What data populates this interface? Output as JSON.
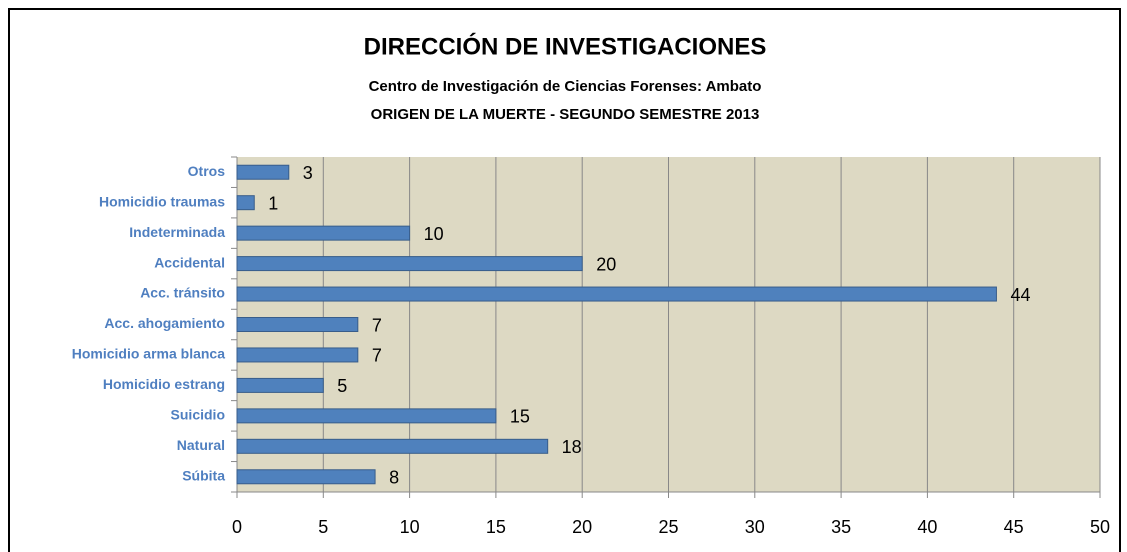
{
  "chart_data": {
    "type": "bar",
    "orientation": "horizontal",
    "title": "DIRECCIÓN DE INVESTIGACIONES",
    "subtitles": [
      "Centro de Investigación de Ciencias Forenses: Ambato",
      "ORIGEN DE LA MUERTE - SEGUNDO SEMESTRE 2013"
    ],
    "categories": [
      "Otros",
      "Homicidio traumas",
      "Indeterminada",
      "Accidental",
      "Acc. tránsito",
      "Acc. ahogamiento",
      "Homicidio arma blanca",
      "Homicidio estrang",
      "Suicidio",
      "Natural",
      "Súbita"
    ],
    "values": [
      3,
      1,
      10,
      20,
      44,
      7,
      7,
      5,
      15,
      18,
      8
    ],
    "color": "#4f81bd",
    "xlim": [
      0,
      50
    ],
    "xticks": [
      0,
      5,
      10,
      15,
      20,
      25,
      30,
      35,
      40,
      45,
      50
    ],
    "grid": true
  }
}
